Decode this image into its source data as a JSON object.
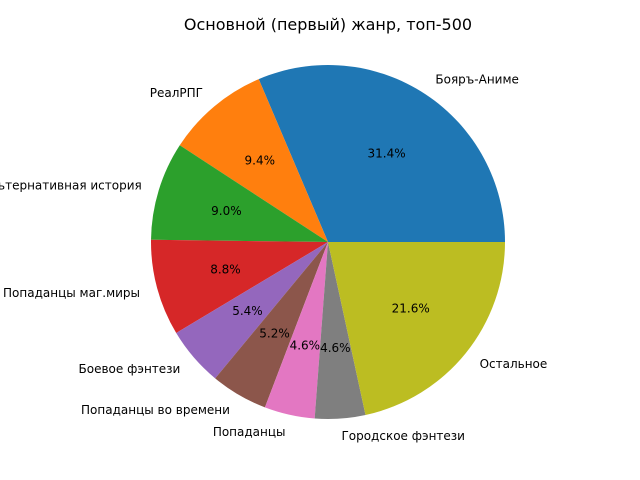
{
  "chart_data": {
    "type": "pie",
    "title": "Основной (первый) жанр, топ-500",
    "start_angle_deg": 0,
    "direction": "counterclockwise",
    "slices": [
      {
        "label": "Бояръ-Аниме",
        "value": 31.4,
        "pct_label": "31.4%",
        "color": "#1f77b4"
      },
      {
        "label": "РеалРПГ",
        "value": 9.4,
        "pct_label": "9.4%",
        "color": "#ff7f0e"
      },
      {
        "label": "Альтернативная история",
        "value": 9.0,
        "pct_label": "9.0%",
        "color": "#2ca02c"
      },
      {
        "label": "Попаданцы маг.миры",
        "value": 8.8,
        "pct_label": "8.8%",
        "color": "#d62728"
      },
      {
        "label": "Боевое фэнтези",
        "value": 5.4,
        "pct_label": "5.4%",
        "color": "#9467bd"
      },
      {
        "label": "Попаданцы во времени",
        "value": 5.2,
        "pct_label": "5.2%",
        "color": "#8c564b"
      },
      {
        "label": "Попаданцы",
        "value": 4.6,
        "pct_label": "4.6%",
        "color": "#e377c2"
      },
      {
        "label": "Городское фэнтези",
        "value": 4.6,
        "pct_label": "4.6%",
        "color": "#7f7f7f"
      },
      {
        "label": "Остальное",
        "value": 21.6,
        "pct_label": "21.6%",
        "color": "#bcbd22"
      }
    ]
  }
}
